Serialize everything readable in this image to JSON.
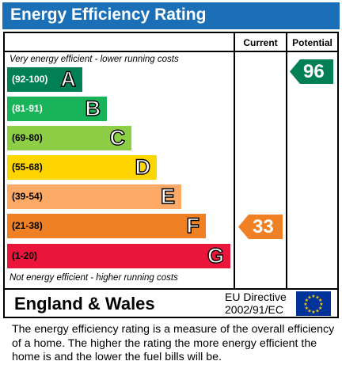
{
  "title": "Energy Efficiency Rating",
  "columns": {
    "current": "Current",
    "potential": "Potential"
  },
  "top_note": "Very energy efficient - lower running costs",
  "bottom_note": "Not energy efficient - higher running costs",
  "bands": [
    {
      "range": "(92-100)",
      "letter": "A",
      "color": "#008054",
      "range_color": "#ffffff"
    },
    {
      "range": "(81-91)",
      "letter": "B",
      "color": "#19b459",
      "range_color": "#ffffff"
    },
    {
      "range": "(69-80)",
      "letter": "C",
      "color": "#8dce46",
      "range_color": "#000000"
    },
    {
      "range": "(55-68)",
      "letter": "D",
      "color": "#ffd500",
      "range_color": "#000000"
    },
    {
      "range": "(39-54)",
      "letter": "E",
      "color": "#fcaa65",
      "range_color": "#000000"
    },
    {
      "range": "(21-38)",
      "letter": "F",
      "color": "#ef8023",
      "range_color": "#000000"
    },
    {
      "range": "(1-20)",
      "letter": "G",
      "color": "#e9153b",
      "range_color": "#000000"
    }
  ],
  "current_rating": {
    "value": "33",
    "color": "#ef8023"
  },
  "potential_rating": {
    "value": "96",
    "color": "#008054"
  },
  "footer": {
    "region": "England & Wales",
    "directive_line1": "EU Directive",
    "directive_line2": "2002/91/EC"
  },
  "description": "The energy efficiency rating is a measure of the overall efficiency of a home.  The higher the rating the more energy efficient the home is and the lower the fuel bills will be.",
  "colors": {
    "title_bar": "#1a6fb6",
    "eu_flag_bg": "#003399",
    "eu_stars": "#ffcc00"
  }
}
